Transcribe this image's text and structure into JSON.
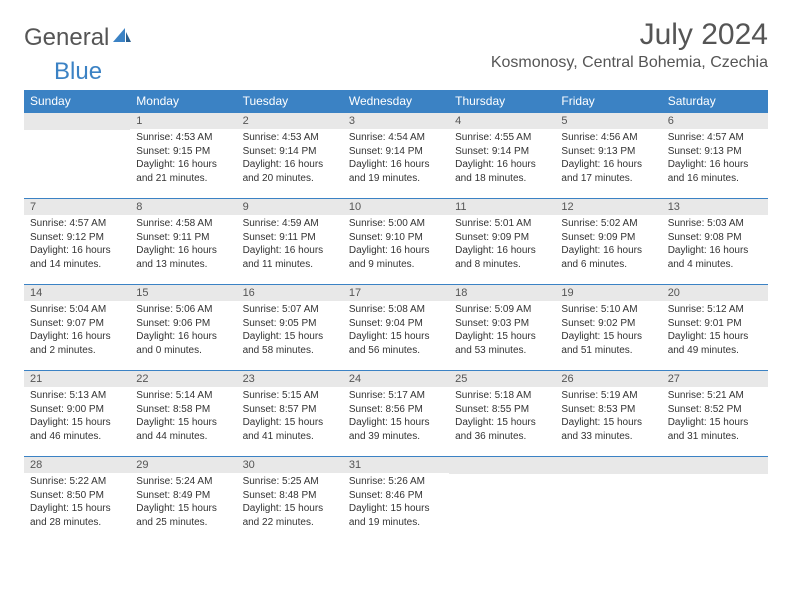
{
  "logo": {
    "text_gray": "General",
    "text_blue": "Blue"
  },
  "header": {
    "month_title": "July 2024",
    "location": "Kosmonosy, Central Bohemia, Czechia"
  },
  "colors": {
    "header_bg": "#3b82c4",
    "header_text": "#ffffff",
    "daynum_bg": "#e8e8e8",
    "border": "#3b82c4",
    "body_text": "#333333",
    "title_text": "#555555"
  },
  "weekdays": [
    "Sunday",
    "Monday",
    "Tuesday",
    "Wednesday",
    "Thursday",
    "Friday",
    "Saturday"
  ],
  "weeks": [
    [
      {
        "day": "",
        "sunrise": "",
        "sunset": "",
        "daylight": ""
      },
      {
        "day": "1",
        "sunrise": "Sunrise: 4:53 AM",
        "sunset": "Sunset: 9:15 PM",
        "daylight": "Daylight: 16 hours and 21 minutes."
      },
      {
        "day": "2",
        "sunrise": "Sunrise: 4:53 AM",
        "sunset": "Sunset: 9:14 PM",
        "daylight": "Daylight: 16 hours and 20 minutes."
      },
      {
        "day": "3",
        "sunrise": "Sunrise: 4:54 AM",
        "sunset": "Sunset: 9:14 PM",
        "daylight": "Daylight: 16 hours and 19 minutes."
      },
      {
        "day": "4",
        "sunrise": "Sunrise: 4:55 AM",
        "sunset": "Sunset: 9:14 PM",
        "daylight": "Daylight: 16 hours and 18 minutes."
      },
      {
        "day": "5",
        "sunrise": "Sunrise: 4:56 AM",
        "sunset": "Sunset: 9:13 PM",
        "daylight": "Daylight: 16 hours and 17 minutes."
      },
      {
        "day": "6",
        "sunrise": "Sunrise: 4:57 AM",
        "sunset": "Sunset: 9:13 PM",
        "daylight": "Daylight: 16 hours and 16 minutes."
      }
    ],
    [
      {
        "day": "7",
        "sunrise": "Sunrise: 4:57 AM",
        "sunset": "Sunset: 9:12 PM",
        "daylight": "Daylight: 16 hours and 14 minutes."
      },
      {
        "day": "8",
        "sunrise": "Sunrise: 4:58 AM",
        "sunset": "Sunset: 9:11 PM",
        "daylight": "Daylight: 16 hours and 13 minutes."
      },
      {
        "day": "9",
        "sunrise": "Sunrise: 4:59 AM",
        "sunset": "Sunset: 9:11 PM",
        "daylight": "Daylight: 16 hours and 11 minutes."
      },
      {
        "day": "10",
        "sunrise": "Sunrise: 5:00 AM",
        "sunset": "Sunset: 9:10 PM",
        "daylight": "Daylight: 16 hours and 9 minutes."
      },
      {
        "day": "11",
        "sunrise": "Sunrise: 5:01 AM",
        "sunset": "Sunset: 9:09 PM",
        "daylight": "Daylight: 16 hours and 8 minutes."
      },
      {
        "day": "12",
        "sunrise": "Sunrise: 5:02 AM",
        "sunset": "Sunset: 9:09 PM",
        "daylight": "Daylight: 16 hours and 6 minutes."
      },
      {
        "day": "13",
        "sunrise": "Sunrise: 5:03 AM",
        "sunset": "Sunset: 9:08 PM",
        "daylight": "Daylight: 16 hours and 4 minutes."
      }
    ],
    [
      {
        "day": "14",
        "sunrise": "Sunrise: 5:04 AM",
        "sunset": "Sunset: 9:07 PM",
        "daylight": "Daylight: 16 hours and 2 minutes."
      },
      {
        "day": "15",
        "sunrise": "Sunrise: 5:06 AM",
        "sunset": "Sunset: 9:06 PM",
        "daylight": "Daylight: 16 hours and 0 minutes."
      },
      {
        "day": "16",
        "sunrise": "Sunrise: 5:07 AM",
        "sunset": "Sunset: 9:05 PM",
        "daylight": "Daylight: 15 hours and 58 minutes."
      },
      {
        "day": "17",
        "sunrise": "Sunrise: 5:08 AM",
        "sunset": "Sunset: 9:04 PM",
        "daylight": "Daylight: 15 hours and 56 minutes."
      },
      {
        "day": "18",
        "sunrise": "Sunrise: 5:09 AM",
        "sunset": "Sunset: 9:03 PM",
        "daylight": "Daylight: 15 hours and 53 minutes."
      },
      {
        "day": "19",
        "sunrise": "Sunrise: 5:10 AM",
        "sunset": "Sunset: 9:02 PM",
        "daylight": "Daylight: 15 hours and 51 minutes."
      },
      {
        "day": "20",
        "sunrise": "Sunrise: 5:12 AM",
        "sunset": "Sunset: 9:01 PM",
        "daylight": "Daylight: 15 hours and 49 minutes."
      }
    ],
    [
      {
        "day": "21",
        "sunrise": "Sunrise: 5:13 AM",
        "sunset": "Sunset: 9:00 PM",
        "daylight": "Daylight: 15 hours and 46 minutes."
      },
      {
        "day": "22",
        "sunrise": "Sunrise: 5:14 AM",
        "sunset": "Sunset: 8:58 PM",
        "daylight": "Daylight: 15 hours and 44 minutes."
      },
      {
        "day": "23",
        "sunrise": "Sunrise: 5:15 AM",
        "sunset": "Sunset: 8:57 PM",
        "daylight": "Daylight: 15 hours and 41 minutes."
      },
      {
        "day": "24",
        "sunrise": "Sunrise: 5:17 AM",
        "sunset": "Sunset: 8:56 PM",
        "daylight": "Daylight: 15 hours and 39 minutes."
      },
      {
        "day": "25",
        "sunrise": "Sunrise: 5:18 AM",
        "sunset": "Sunset: 8:55 PM",
        "daylight": "Daylight: 15 hours and 36 minutes."
      },
      {
        "day": "26",
        "sunrise": "Sunrise: 5:19 AM",
        "sunset": "Sunset: 8:53 PM",
        "daylight": "Daylight: 15 hours and 33 minutes."
      },
      {
        "day": "27",
        "sunrise": "Sunrise: 5:21 AM",
        "sunset": "Sunset: 8:52 PM",
        "daylight": "Daylight: 15 hours and 31 minutes."
      }
    ],
    [
      {
        "day": "28",
        "sunrise": "Sunrise: 5:22 AM",
        "sunset": "Sunset: 8:50 PM",
        "daylight": "Daylight: 15 hours and 28 minutes."
      },
      {
        "day": "29",
        "sunrise": "Sunrise: 5:24 AM",
        "sunset": "Sunset: 8:49 PM",
        "daylight": "Daylight: 15 hours and 25 minutes."
      },
      {
        "day": "30",
        "sunrise": "Sunrise: 5:25 AM",
        "sunset": "Sunset: 8:48 PM",
        "daylight": "Daylight: 15 hours and 22 minutes."
      },
      {
        "day": "31",
        "sunrise": "Sunrise: 5:26 AM",
        "sunset": "Sunset: 8:46 PM",
        "daylight": "Daylight: 15 hours and 19 minutes."
      },
      {
        "day": "",
        "sunrise": "",
        "sunset": "",
        "daylight": ""
      },
      {
        "day": "",
        "sunrise": "",
        "sunset": "",
        "daylight": ""
      },
      {
        "day": "",
        "sunrise": "",
        "sunset": "",
        "daylight": ""
      }
    ]
  ]
}
